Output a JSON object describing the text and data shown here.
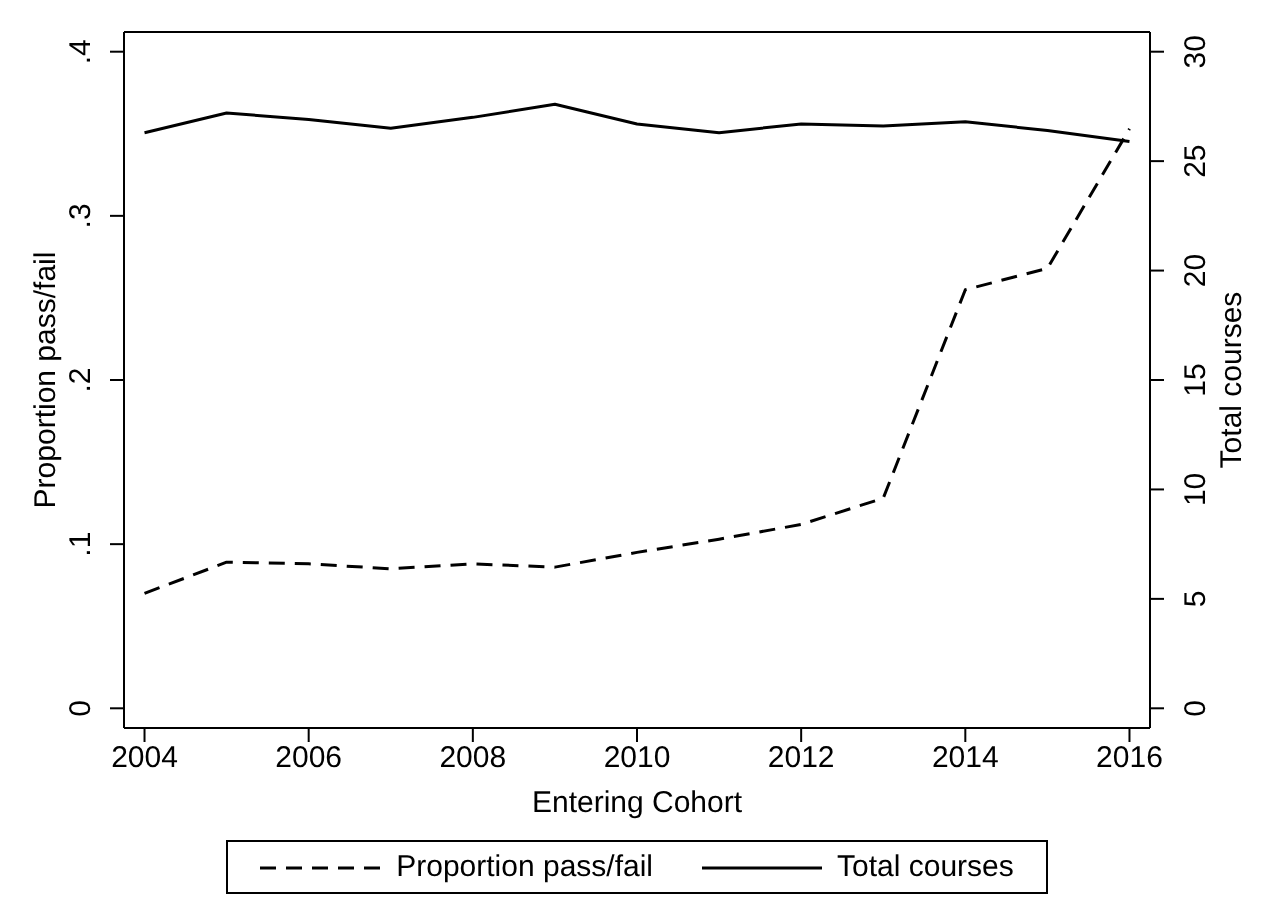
{
  "chart_data": {
    "type": "line",
    "xlabel": "Entering Cohort",
    "ylabel": "Proportion pass/fail",
    "y2label": "Total courses",
    "x": [
      2004,
      2005,
      2006,
      2007,
      2008,
      2009,
      2010,
      2011,
      2012,
      2013,
      2014,
      2015,
      2016
    ],
    "series": [
      {
        "name": "Proportion pass/fail",
        "color": "#000000",
        "line_style": "dashed",
        "values": [
          0.07,
          0.089,
          0.088,
          0.085,
          0.088,
          0.086,
          0.095,
          0.103,
          0.112,
          0.128,
          0.255,
          0.268,
          0.353
        ]
      },
      {
        "name": "Total courses",
        "color": "#000000",
        "line_style": "solid",
        "axis": "y2",
        "values": [
          26.3,
          27.2,
          26.9,
          26.5,
          27.0,
          27.6,
          26.7,
          26.3,
          26.7,
          26.6,
          26.8,
          26.4,
          25.9
        ]
      }
    ],
    "xlim": [
      2003.75,
      2016.25
    ],
    "xticks": [
      2004,
      2006,
      2008,
      2010,
      2012,
      2014,
      2016
    ],
    "ylim": [
      -0.012,
      0.412
    ],
    "yticks": [
      {
        "value": 0,
        "label": "0"
      },
      {
        "value": 0.1,
        "label": ".1"
      },
      {
        "value": 0.2,
        "label": ".2"
      },
      {
        "value": 0.3,
        "label": ".3"
      },
      {
        "value": 0.4,
        "label": ".4"
      }
    ],
    "y2lim": [
      -0.9,
      30.9
    ],
    "y2ticks": [
      0,
      5,
      10,
      15,
      20,
      25,
      30
    ],
    "grid": false,
    "legend": "bottom",
    "marker": "none"
  }
}
